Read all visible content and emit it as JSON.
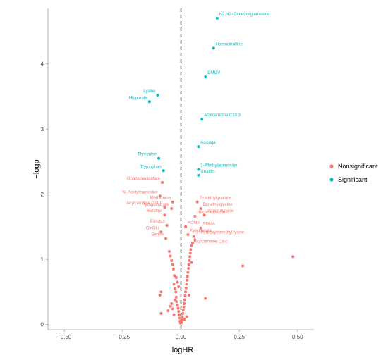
{
  "chart_data": {
    "type": "scatter",
    "xlabel": "logHR",
    "ylabel": "−logp",
    "xlim": [
      -0.57,
      0.57
    ],
    "ylim": [
      -0.08,
      4.85
    ],
    "x_ticks": [
      -0.5,
      -0.25,
      0.0,
      0.25,
      0.5
    ],
    "x_tick_labels": [
      "−0.50",
      "−0.25",
      "0.00",
      "0.25",
      "0.50"
    ],
    "y_ticks": [
      0,
      1,
      2,
      3,
      4
    ],
    "y_tick_labels": [
      "0",
      "1",
      "2",
      "3",
      "4"
    ],
    "reference_line": {
      "x": 0,
      "style": "dashed"
    },
    "grid": false,
    "legend": {
      "placement": "right",
      "entries": [
        {
          "name": "Nonsignificant",
          "color": "#F8766D"
        },
        {
          "name": "Significant",
          "color": "#00BFC4"
        }
      ]
    },
    "colors": {
      "Nonsignificant": "#F8766D",
      "Significant": "#00BFC4",
      "reference_line": "#000000"
    },
    "series": [
      {
        "name": "Significant",
        "points": [
          {
            "label": "N2,N2−Dimethylguanosine",
            "x": 0.155,
            "y": 4.7
          },
          {
            "label": "Homocitrulline",
            "x": 0.14,
            "y": 4.24
          },
          {
            "label": "DMGV",
            "x": 0.105,
            "y": 3.8
          },
          {
            "label": "Lysine",
            "x": -0.1,
            "y": 3.52
          },
          {
            "label": "Hippurate",
            "x": -0.135,
            "y": 3.42
          },
          {
            "label": "Acylcarnitine C10:3",
            "x": 0.09,
            "y": 3.15
          },
          {
            "label": "Acisoga",
            "x": 0.075,
            "y": 2.73
          },
          {
            "label": "Threonine",
            "x": -0.095,
            "y": 2.55
          },
          {
            "label": "1−Methyladenosine",
            "x": 0.075,
            "y": 2.38
          },
          {
            "label": "Tryptophan",
            "x": -0.075,
            "y": 2.36
          },
          {
            "label": "Uropilin",
            "x": 0.075,
            "y": 2.29
          }
        ]
      },
      {
        "name": "Nonsignificant",
        "points": [
          {
            "label": "Guanidinoacetate",
            "x": -0.08,
            "y": 2.18
          },
          {
            "label": "N−Acetylcarnosine",
            "x": -0.09,
            "y": 1.97
          },
          {
            "label": "Methionine",
            "x": -0.035,
            "y": 1.88
          },
          {
            "label": "7−Methylguanine",
            "x": 0.07,
            "y": 1.88
          },
          {
            "label": "Acylcarnitine C11:0",
            "x": -0.07,
            "y": 1.8
          },
          {
            "label": "Pyroglutamate",
            "x": -0.04,
            "y": 1.78
          },
          {
            "label": "Dimethylglycine",
            "x": 0.085,
            "y": 1.78
          },
          {
            "label": "Histidine",
            "x": -0.07,
            "y": 1.68
          },
          {
            "label": "Racemethionine",
            "x": 0.06,
            "y": 1.66
          },
          {
            "label": "Pyroglutamine",
            "x": 0.1,
            "y": 1.68
          },
          {
            "label": "Bilirubin",
            "x": -0.06,
            "y": 1.52
          },
          {
            "label": "ADMA",
            "x": 0.02,
            "y": 1.5
          },
          {
            "label": "SDMA",
            "x": 0.085,
            "y": 1.48
          },
          {
            "label": "GlnGlu",
            "x": -0.085,
            "y": 1.42
          },
          {
            "label": "Kynurenate",
            "x": 0.03,
            "y": 1.38
          },
          {
            "label": "Serine",
            "x": -0.065,
            "y": 1.32
          },
          {
            "label": "3−Hydroxytrimethyl lysine",
            "x": 0.055,
            "y": 1.35
          },
          {
            "label": "Acylcarnitine C8:0",
            "x": 0.045,
            "y": 1.21
          },
          {
            "label": "",
            "x": 0.48,
            "y": 1.04
          },
          {
            "label": "",
            "x": 0.265,
            "y": 0.9
          },
          {
            "label": "",
            "x": 0.105,
            "y": 0.4
          },
          {
            "label": "",
            "x": -0.085,
            "y": 0.17
          },
          {
            "label": "",
            "x": -0.055,
            "y": 0.21
          },
          {
            "label": "",
            "x": -0.09,
            "y": 0.45
          },
          {
            "label": "",
            "x": -0.085,
            "y": 0.5
          },
          {
            "label": "",
            "x": -0.045,
            "y": 1.05
          },
          {
            "label": "",
            "x": -0.04,
            "y": 0.98
          },
          {
            "label": "",
            "x": -0.035,
            "y": 0.92
          },
          {
            "label": "",
            "x": -0.032,
            "y": 0.85
          },
          {
            "label": "",
            "x": -0.028,
            "y": 0.75
          },
          {
            "label": "",
            "x": -0.03,
            "y": 0.62
          },
          {
            "label": "",
            "x": -0.025,
            "y": 0.55
          },
          {
            "label": "",
            "x": -0.022,
            "y": 0.5
          },
          {
            "label": "",
            "x": -0.02,
            "y": 0.42
          },
          {
            "label": "",
            "x": -0.018,
            "y": 0.35
          },
          {
            "label": "",
            "x": -0.015,
            "y": 0.3
          },
          {
            "label": "",
            "x": -0.012,
            "y": 0.25
          },
          {
            "label": "",
            "x": -0.01,
            "y": 0.2
          },
          {
            "label": "",
            "x": -0.008,
            "y": 0.15
          },
          {
            "label": "",
            "x": -0.006,
            "y": 0.1
          },
          {
            "label": "",
            "x": -0.004,
            "y": 0.05
          },
          {
            "label": "",
            "x": -0.002,
            "y": 0.02
          },
          {
            "label": "",
            "x": 0.002,
            "y": 0.03
          },
          {
            "label": "",
            "x": 0.004,
            "y": 0.07
          },
          {
            "label": "",
            "x": 0.006,
            "y": 0.12
          },
          {
            "label": "",
            "x": 0.008,
            "y": 0.17
          },
          {
            "label": "",
            "x": 0.01,
            "y": 0.22
          },
          {
            "label": "",
            "x": 0.012,
            "y": 0.27
          },
          {
            "label": "",
            "x": 0.014,
            "y": 0.32
          },
          {
            "label": "",
            "x": 0.016,
            "y": 0.38
          },
          {
            "label": "",
            "x": 0.018,
            "y": 0.44
          },
          {
            "label": "",
            "x": 0.02,
            "y": 0.5
          },
          {
            "label": "",
            "x": 0.022,
            "y": 0.56
          },
          {
            "label": "",
            "x": 0.024,
            "y": 0.62
          },
          {
            "label": "",
            "x": 0.026,
            "y": 0.68
          },
          {
            "label": "",
            "x": 0.028,
            "y": 0.74
          },
          {
            "label": "",
            "x": 0.03,
            "y": 0.8
          },
          {
            "label": "",
            "x": 0.032,
            "y": 0.86
          },
          {
            "label": "",
            "x": 0.034,
            "y": 0.92
          },
          {
            "label": "",
            "x": 0.036,
            "y": 0.98
          },
          {
            "label": "",
            "x": 0.038,
            "y": 1.04
          },
          {
            "label": "",
            "x": 0.04,
            "y": 1.1
          },
          {
            "label": "",
            "x": 0.042,
            "y": 1.15
          },
          {
            "label": "",
            "x": 0.05,
            "y": 1.25
          },
          {
            "label": "",
            "x": 0.06,
            "y": 1.3
          },
          {
            "label": "",
            "x": -0.05,
            "y": 1.12
          },
          {
            "label": "",
            "x": -0.015,
            "y": 0.65
          },
          {
            "label": "",
            "x": -0.02,
            "y": 0.72
          },
          {
            "label": "",
            "x": -0.04,
            "y": 0.32
          },
          {
            "label": "",
            "x": -0.045,
            "y": 0.28
          },
          {
            "label": "",
            "x": -0.035,
            "y": 0.24
          },
          {
            "label": "",
            "x": -0.03,
            "y": 0.15
          },
          {
            "label": "",
            "x": 0.015,
            "y": 0.08
          },
          {
            "label": "",
            "x": 0.025,
            "y": 0.12
          },
          {
            "label": "",
            "x": 0.035,
            "y": 0.45
          },
          {
            "label": "",
            "x": -0.025,
            "y": 0.38
          },
          {
            "label": "",
            "x": 0.045,
            "y": 0.95
          },
          {
            "label": "",
            "x": -0.01,
            "y": 0.58
          }
        ]
      }
    ]
  }
}
